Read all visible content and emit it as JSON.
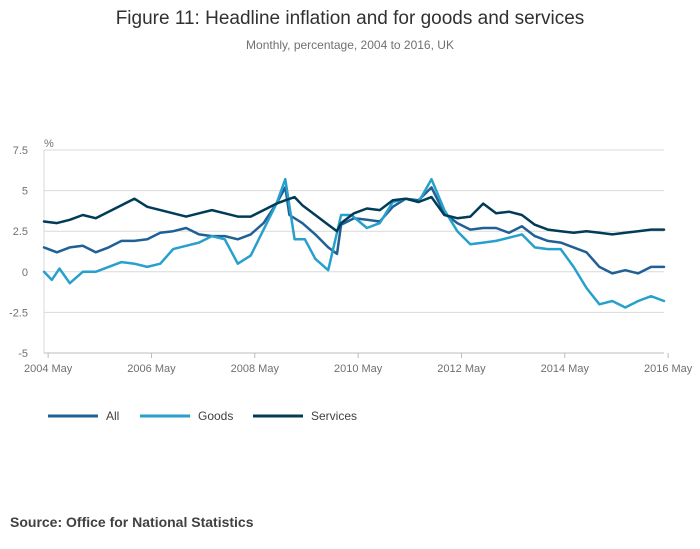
{
  "chart_data": {
    "type": "line",
    "title": "Figure 11: Headline inflation and for goods and services",
    "subtitle": "Monthly, percentage, 2004 to 2016, UK",
    "ylabel": "%",
    "xlabel": "",
    "ylim": [
      -5,
      7.5
    ],
    "yticks": [
      7.5,
      5,
      2.5,
      0,
      -2.5,
      -5
    ],
    "ytick_labels": [
      "7.5",
      "5",
      "2.5",
      "0",
      "-2.5",
      "-5"
    ],
    "xlim": [
      2004.25,
      2016.25
    ],
    "xticks": [
      2004.33,
      2006.33,
      2008.33,
      2010.33,
      2012.33,
      2014.33,
      2016.33
    ],
    "xtick_labels": [
      "2004 May",
      "2006 May",
      "2008 May",
      "2010 May",
      "2012 May",
      "2014 May",
      "2016 May"
    ],
    "grid": true,
    "legend_position": "bottom-left",
    "series": [
      {
        "name": "All",
        "color": "#206095",
        "points": [
          [
            2004.25,
            1.5
          ],
          [
            2004.5,
            1.2
          ],
          [
            2004.75,
            1.5
          ],
          [
            2005.0,
            1.6
          ],
          [
            2005.25,
            1.2
          ],
          [
            2005.5,
            1.5
          ],
          [
            2005.75,
            1.9
          ],
          [
            2006.0,
            1.9
          ],
          [
            2006.25,
            2.0
          ],
          [
            2006.5,
            2.4
          ],
          [
            2006.75,
            2.5
          ],
          [
            2007.0,
            2.7
          ],
          [
            2007.25,
            2.3
          ],
          [
            2007.5,
            2.2
          ],
          [
            2007.75,
            2.2
          ],
          [
            2008.0,
            2.0
          ],
          [
            2008.25,
            2.3
          ],
          [
            2008.5,
            3.0
          ],
          [
            2008.75,
            4.2
          ],
          [
            2008.92,
            5.2
          ],
          [
            2009.0,
            3.5
          ],
          [
            2009.25,
            3.0
          ],
          [
            2009.5,
            2.3
          ],
          [
            2009.75,
            1.5
          ],
          [
            2009.92,
            1.1
          ],
          [
            2010.0,
            2.9
          ],
          [
            2010.25,
            3.3
          ],
          [
            2010.5,
            3.2
          ],
          [
            2010.75,
            3.1
          ],
          [
            2011.0,
            4.0
          ],
          [
            2011.25,
            4.5
          ],
          [
            2011.5,
            4.4
          ],
          [
            2011.75,
            5.2
          ],
          [
            2012.0,
            3.6
          ],
          [
            2012.25,
            3.0
          ],
          [
            2012.5,
            2.6
          ],
          [
            2012.75,
            2.7
          ],
          [
            2013.0,
            2.7
          ],
          [
            2013.25,
            2.4
          ],
          [
            2013.5,
            2.8
          ],
          [
            2013.75,
            2.2
          ],
          [
            2014.0,
            1.9
          ],
          [
            2014.25,
            1.8
          ],
          [
            2014.5,
            1.5
          ],
          [
            2014.75,
            1.2
          ],
          [
            2015.0,
            0.3
          ],
          [
            2015.25,
            -0.1
          ],
          [
            2015.5,
            0.1
          ],
          [
            2015.75,
            -0.1
          ],
          [
            2016.0,
            0.3
          ],
          [
            2016.25,
            0.3
          ]
        ]
      },
      {
        "name": "Goods",
        "color": "#27A0CC",
        "points": [
          [
            2004.25,
            0.0
          ],
          [
            2004.4,
            -0.5
          ],
          [
            2004.55,
            0.2
          ],
          [
            2004.75,
            -0.7
          ],
          [
            2005.0,
            0.0
          ],
          [
            2005.25,
            0.0
          ],
          [
            2005.5,
            0.3
          ],
          [
            2005.75,
            0.6
          ],
          [
            2006.0,
            0.5
          ],
          [
            2006.25,
            0.3
          ],
          [
            2006.5,
            0.5
          ],
          [
            2006.75,
            1.4
          ],
          [
            2007.0,
            1.6
          ],
          [
            2007.25,
            1.8
          ],
          [
            2007.5,
            2.2
          ],
          [
            2007.75,
            2.0
          ],
          [
            2008.0,
            0.5
          ],
          [
            2008.25,
            1.0
          ],
          [
            2008.5,
            2.6
          ],
          [
            2008.75,
            4.2
          ],
          [
            2008.92,
            5.7
          ],
          [
            2009.1,
            2.0
          ],
          [
            2009.3,
            2.0
          ],
          [
            2009.5,
            0.8
          ],
          [
            2009.75,
            0.1
          ],
          [
            2010.0,
            3.5
          ],
          [
            2010.2,
            3.5
          ],
          [
            2010.5,
            2.7
          ],
          [
            2010.75,
            3.0
          ],
          [
            2011.0,
            4.3
          ],
          [
            2011.25,
            4.5
          ],
          [
            2011.5,
            4.3
          ],
          [
            2011.75,
            5.7
          ],
          [
            2012.0,
            3.8
          ],
          [
            2012.25,
            2.5
          ],
          [
            2012.5,
            1.7
          ],
          [
            2012.75,
            1.8
          ],
          [
            2013.0,
            1.9
          ],
          [
            2013.25,
            2.1
          ],
          [
            2013.5,
            2.3
          ],
          [
            2013.75,
            1.5
          ],
          [
            2014.0,
            1.4
          ],
          [
            2014.25,
            1.4
          ],
          [
            2014.5,
            0.3
          ],
          [
            2014.75,
            -1.0
          ],
          [
            2015.0,
            -2.0
          ],
          [
            2015.25,
            -1.8
          ],
          [
            2015.5,
            -2.2
          ],
          [
            2015.75,
            -1.8
          ],
          [
            2016.0,
            -1.5
          ],
          [
            2016.25,
            -1.8
          ]
        ]
      },
      {
        "name": "Services",
        "color": "#003C57",
        "points": [
          [
            2004.25,
            3.1
          ],
          [
            2004.5,
            3.0
          ],
          [
            2004.75,
            3.2
          ],
          [
            2005.0,
            3.5
          ],
          [
            2005.25,
            3.3
          ],
          [
            2005.5,
            3.7
          ],
          [
            2005.75,
            4.1
          ],
          [
            2006.0,
            4.5
          ],
          [
            2006.25,
            4.0
          ],
          [
            2006.5,
            3.8
          ],
          [
            2006.75,
            3.6
          ],
          [
            2007.0,
            3.4
          ],
          [
            2007.25,
            3.6
          ],
          [
            2007.5,
            3.8
          ],
          [
            2007.75,
            3.6
          ],
          [
            2008.0,
            3.4
          ],
          [
            2008.25,
            3.4
          ],
          [
            2008.5,
            3.8
          ],
          [
            2008.75,
            4.2
          ],
          [
            2008.92,
            4.4
          ],
          [
            2009.1,
            4.6
          ],
          [
            2009.25,
            4.1
          ],
          [
            2009.5,
            3.5
          ],
          [
            2009.75,
            2.9
          ],
          [
            2009.92,
            2.5
          ],
          [
            2010.0,
            3.0
          ],
          [
            2010.25,
            3.6
          ],
          [
            2010.5,
            3.9
          ],
          [
            2010.75,
            3.8
          ],
          [
            2011.0,
            4.4
          ],
          [
            2011.25,
            4.5
          ],
          [
            2011.5,
            4.3
          ],
          [
            2011.75,
            4.6
          ],
          [
            2012.0,
            3.5
          ],
          [
            2012.25,
            3.3
          ],
          [
            2012.5,
            3.4
          ],
          [
            2012.75,
            4.2
          ],
          [
            2013.0,
            3.6
          ],
          [
            2013.25,
            3.7
          ],
          [
            2013.5,
            3.5
          ],
          [
            2013.75,
            2.9
          ],
          [
            2014.0,
            2.6
          ],
          [
            2014.25,
            2.5
          ],
          [
            2014.5,
            2.4
          ],
          [
            2014.75,
            2.5
          ],
          [
            2015.0,
            2.4
          ],
          [
            2015.25,
            2.3
          ],
          [
            2015.5,
            2.4
          ],
          [
            2015.75,
            2.5
          ],
          [
            2016.0,
            2.6
          ],
          [
            2016.25,
            2.6
          ]
        ]
      }
    ]
  },
  "source": "Source: Office for National Statistics"
}
